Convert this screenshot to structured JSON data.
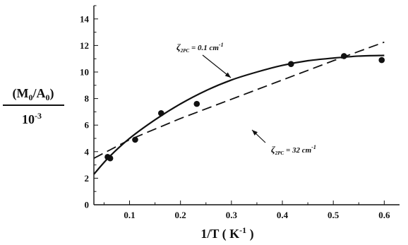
{
  "chart_data": {
    "type": "scatter",
    "xlabel": "1/T ( K",
    "xlabel_sup": "-1",
    "xlabel_close": " )",
    "ylabel_num": "(M",
    "ylabel_num_rest": "/A",
    "ylabel_num_end": ")",
    "ylabel_sub": "0",
    "ylabel_den": "10",
    "ylabel_den_sup": "-3",
    "xlim": [
      0.03,
      0.63
    ],
    "ylim": [
      0,
      15
    ],
    "x_ticks": [
      0.1,
      0.2,
      0.3,
      0.4,
      0.5,
      0.6
    ],
    "x_tick_labels": [
      "0.1",
      "0.2",
      "0.3",
      "0.4",
      "0.5",
      "0.6"
    ],
    "y_ticks": [
      0,
      2,
      4,
      6,
      8,
      10,
      12,
      14
    ],
    "y_tick_labels": [
      "0",
      "2",
      "4",
      "6",
      "8",
      "10",
      "12",
      "14"
    ],
    "points": {
      "x": [
        0.057,
        0.062,
        0.111,
        0.162,
        0.232,
        0.417,
        0.521,
        0.595
      ],
      "y": [
        3.6,
        3.5,
        4.9,
        6.9,
        7.6,
        10.6,
        11.2,
        10.9
      ]
    },
    "series": [
      {
        "style": "solid",
        "x": [
          0.03,
          0.06,
          0.1,
          0.15,
          0.2,
          0.25,
          0.3,
          0.35,
          0.4,
          0.45,
          0.5,
          0.55,
          0.6
        ],
        "y": [
          2.3,
          3.6,
          5.0,
          6.4,
          7.6,
          8.6,
          9.4,
          10.0,
          10.5,
          10.85,
          11.05,
          11.2,
          11.25
        ]
      },
      {
        "style": "dashed",
        "x": [
          0.03,
          0.1,
          0.2,
          0.3,
          0.4,
          0.5,
          0.6
        ],
        "y": [
          3.5,
          4.9,
          6.5,
          7.95,
          9.4,
          10.85,
          12.25
        ]
      }
    ],
    "annotations": [
      {
        "zeta": "ζ",
        "sub": "2PC",
        "text": " = 0.1 cm",
        "sup": "-1",
        "target": "solid"
      },
      {
        "zeta": "ζ",
        "sub": "2PC",
        "text": " = 32 cm",
        "sup": "-1",
        "target": "dashed"
      }
    ]
  }
}
